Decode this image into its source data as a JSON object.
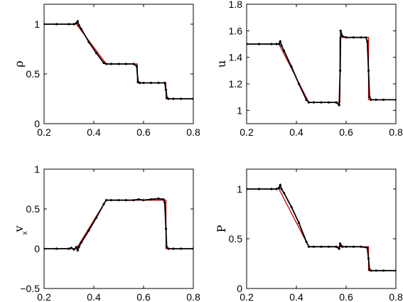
{
  "colors": {
    "reference_line": "#cc0000",
    "markers": "#000000",
    "axes": "#000000"
  },
  "chart_data": [
    {
      "type": "line",
      "ylabel": "ρ",
      "ylabel_sub": "",
      "xlim": [
        0.2,
        0.8
      ],
      "ylim": [
        0,
        1.2
      ],
      "xticks": [
        "0.2",
        "0.4",
        "0.6",
        "0.8"
      ],
      "yticks": [
        "0",
        "0.5",
        "1"
      ],
      "ytick_values": [
        0,
        0.5,
        1
      ],
      "series": [
        {
          "role": "reference",
          "x": [
            0.2,
            0.33,
            0.45,
            0.575,
            0.575,
            0.69,
            0.69,
            0.8
          ],
          "y": [
            1.0,
            1.0,
            0.6,
            0.6,
            0.41,
            0.41,
            0.25,
            0.25
          ]
        },
        {
          "role": "numerical",
          "x": [
            0.2,
            0.25,
            0.3,
            0.32,
            0.33,
            0.335,
            0.34,
            0.35,
            0.38,
            0.41,
            0.44,
            0.45,
            0.47,
            0.5,
            0.53,
            0.56,
            0.572,
            0.578,
            0.585,
            0.6,
            0.63,
            0.66,
            0.685,
            0.69,
            0.694,
            0.7,
            0.72,
            0.75,
            0.8
          ],
          "y": [
            1.0,
            1.0,
            1.0,
            1.0,
            1.01,
            1.03,
            0.99,
            0.95,
            0.82,
            0.71,
            0.61,
            0.6,
            0.6,
            0.6,
            0.6,
            0.6,
            0.58,
            0.42,
            0.41,
            0.41,
            0.41,
            0.41,
            0.41,
            0.34,
            0.26,
            0.25,
            0.25,
            0.25,
            0.25
          ]
        }
      ]
    },
    {
      "type": "line",
      "ylabel": "u",
      "ylabel_sub": "",
      "xlim": [
        0.2,
        0.8
      ],
      "ylim": [
        0.9,
        1.8
      ],
      "xticks": [
        "0.2",
        "0.4",
        "0.6",
        "0.8"
      ],
      "yticks": [
        "1",
        "1.2",
        "1.4",
        "1.6",
        "1.8"
      ],
      "ytick_values": [
        1.0,
        1.2,
        1.4,
        1.6,
        1.8
      ],
      "series": [
        {
          "role": "reference",
          "x": [
            0.2,
            0.33,
            0.45,
            0.575,
            0.575,
            0.69,
            0.69,
            0.8
          ],
          "y": [
            1.5,
            1.5,
            1.06,
            1.06,
            1.55,
            1.55,
            1.08,
            1.08
          ]
        },
        {
          "role": "numerical",
          "x": [
            0.2,
            0.25,
            0.3,
            0.32,
            0.33,
            0.335,
            0.34,
            0.35,
            0.38,
            0.41,
            0.44,
            0.45,
            0.47,
            0.5,
            0.53,
            0.56,
            0.572,
            0.576,
            0.578,
            0.58,
            0.585,
            0.6,
            0.63,
            0.66,
            0.68,
            0.685,
            0.69,
            0.694,
            0.7,
            0.72,
            0.75,
            0.8
          ],
          "y": [
            1.5,
            1.5,
            1.5,
            1.5,
            1.5,
            1.52,
            1.49,
            1.45,
            1.33,
            1.2,
            1.08,
            1.06,
            1.06,
            1.06,
            1.06,
            1.06,
            1.04,
            1.3,
            1.6,
            1.58,
            1.56,
            1.55,
            1.55,
            1.55,
            1.55,
            1.52,
            1.3,
            1.1,
            1.08,
            1.08,
            1.08,
            1.08
          ]
        }
      ]
    },
    {
      "type": "line",
      "ylabel": "v",
      "ylabel_sub": "x",
      "xlim": [
        0.2,
        0.8
      ],
      "ylim": [
        -0.5,
        1.0
      ],
      "xticks": [
        "0.2",
        "0.4",
        "0.6",
        "0.8"
      ],
      "yticks": [
        "−0.5",
        "0",
        "0.5",
        "1"
      ],
      "ytick_values": [
        -0.5,
        0,
        0.5,
        1.0
      ],
      "series": [
        {
          "role": "reference",
          "x": [
            0.2,
            0.33,
            0.45,
            0.69,
            0.69,
            0.8
          ],
          "y": [
            0.0,
            0.0,
            0.61,
            0.61,
            0.0,
            0.0
          ]
        },
        {
          "role": "numerical",
          "x": [
            0.2,
            0.25,
            0.3,
            0.31,
            0.32,
            0.33,
            0.335,
            0.34,
            0.35,
            0.38,
            0.41,
            0.44,
            0.45,
            0.47,
            0.5,
            0.53,
            0.56,
            0.58,
            0.6,
            0.63,
            0.66,
            0.68,
            0.685,
            0.69,
            0.693,
            0.7,
            0.72,
            0.75,
            0.8
          ],
          "y": [
            0.0,
            0.0,
            0.0,
            0.01,
            -0.01,
            0.02,
            -0.02,
            0.02,
            0.08,
            0.23,
            0.39,
            0.56,
            0.61,
            0.61,
            0.61,
            0.61,
            0.61,
            0.62,
            0.61,
            0.62,
            0.63,
            0.62,
            0.58,
            0.25,
            0.02,
            0.0,
            0.0,
            0.0,
            0.0
          ]
        }
      ]
    },
    {
      "type": "line",
      "ylabel": "P",
      "ylabel_sub": "",
      "xlim": [
        0.2,
        0.8
      ],
      "ylim": [
        0,
        1.2
      ],
      "xticks": [
        "0.2",
        "0.4",
        "0.6",
        "0.8"
      ],
      "yticks": [
        "0",
        "0.5",
        "1"
      ],
      "ytick_values": [
        0,
        0.5,
        1
      ],
      "series": [
        {
          "role": "reference",
          "x": [
            0.2,
            0.33,
            0.45,
            0.69,
            0.69,
            0.8
          ],
          "y": [
            1.0,
            1.0,
            0.42,
            0.42,
            0.18,
            0.18
          ]
        },
        {
          "role": "numerical",
          "x": [
            0.2,
            0.25,
            0.3,
            0.32,
            0.33,
            0.335,
            0.34,
            0.35,
            0.38,
            0.41,
            0.44,
            0.45,
            0.47,
            0.5,
            0.53,
            0.56,
            0.572,
            0.576,
            0.58,
            0.585,
            0.6,
            0.63,
            0.66,
            0.685,
            0.69,
            0.694,
            0.7,
            0.72,
            0.75,
            0.8
          ],
          "y": [
            1.0,
            1.0,
            1.0,
            1.0,
            1.01,
            1.04,
            1.0,
            0.96,
            0.82,
            0.66,
            0.47,
            0.42,
            0.42,
            0.42,
            0.42,
            0.42,
            0.4,
            0.45,
            0.43,
            0.42,
            0.42,
            0.42,
            0.42,
            0.41,
            0.3,
            0.19,
            0.18,
            0.18,
            0.18,
            0.18
          ]
        }
      ]
    }
  ]
}
